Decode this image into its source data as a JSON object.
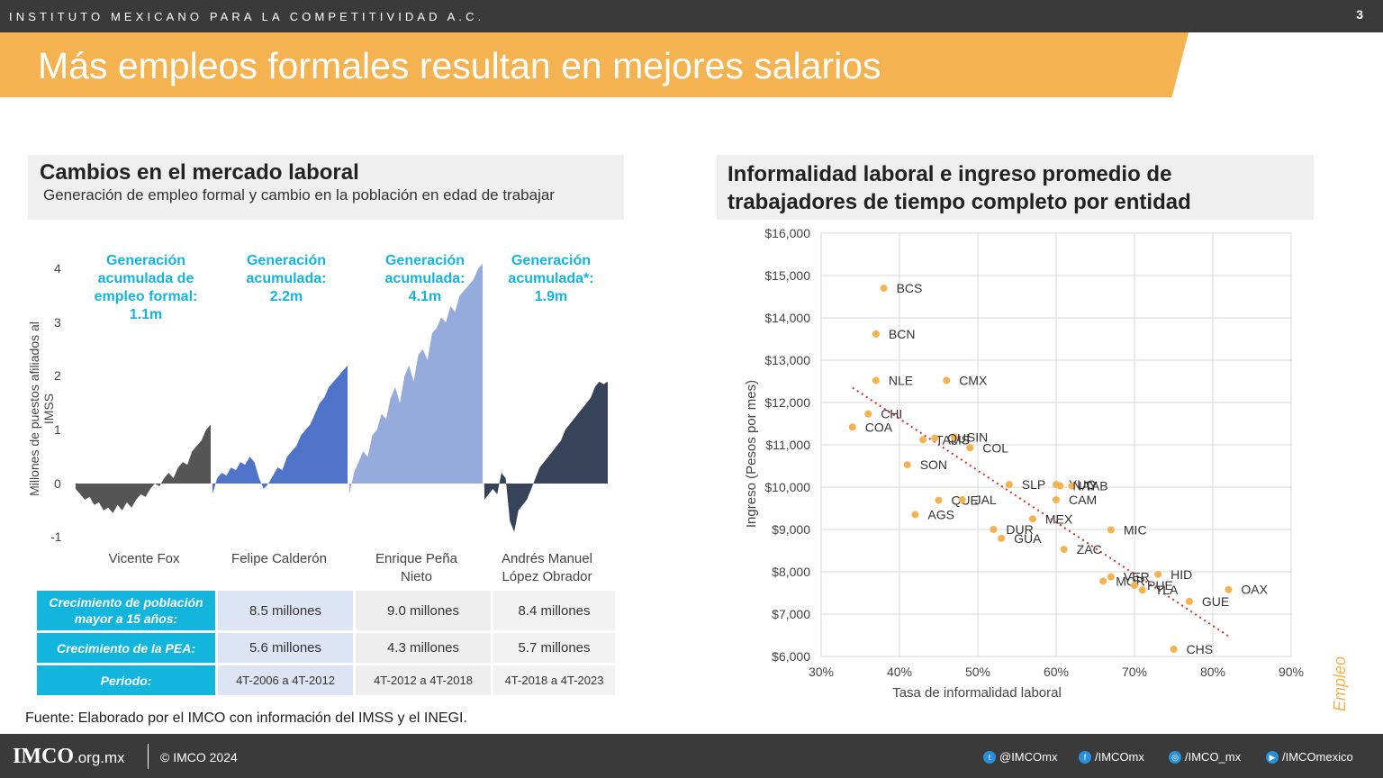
{
  "header": {
    "org": "INSTITUTO MEXICANO PARA LA COMPETITIVIDAD A.C.",
    "page": "3",
    "title": "Más empleos formales resultan en mejores salarios"
  },
  "left": {
    "title": "Cambios en el mercado laboral",
    "subtitle": "Generación de empleo formal y cambio en la población en edad de trabajar",
    "ylabel": "Millones de puestos afiliados al IMSS",
    "yticks": [
      "4",
      "3",
      "2",
      "1",
      "0",
      "-1"
    ],
    "generations": [
      "Generación acumulada de empleo formal: 1.1m",
      "Generación acumulada: 2.2m",
      "Generación acumulada: 4.1m",
      "Generación acumulada*: 1.9m"
    ],
    "presidents": [
      "Vicente Fox",
      "Felipe Calderón",
      "Enrique Peña Nieto",
      "Andrés Manuel López Obrador"
    ],
    "table": [
      {
        "label": "Crecimiento de población mayor a 15 años:",
        "values": [
          "8.5 millones",
          "9.0 millones",
          "8.4 millones"
        ]
      },
      {
        "label": "Crecimiento de la PEA:",
        "values": [
          "5.6 millones",
          "4.3 millones",
          "5.7 millones"
        ]
      },
      {
        "label": "Periodo:",
        "values": [
          "4T-2006 a 4T-2012",
          "4T-2012 a 4T-2018",
          "4T-2018 a 4T-2023"
        ]
      }
    ],
    "source": "Fuente: Elaborado por el IMCO con información del IMSS y el INEGI."
  },
  "chart_data": [
    {
      "type": "area",
      "ylabel": "Millones de puestos afiliados al IMSS",
      "ylim": [
        -1,
        4
      ],
      "colors": [
        "#555555",
        "#4e73c9",
        "#95abdb",
        "#364358"
      ],
      "series": [
        {
          "name": "Vicente Fox",
          "values": [
            -0.1,
            -0.2,
            -0.3,
            -0.25,
            -0.4,
            -0.35,
            -0.5,
            -0.45,
            -0.55,
            -0.4,
            -0.5,
            -0.35,
            -0.45,
            -0.3,
            -0.2,
            -0.25,
            -0.1,
            0.0,
            -0.05,
            0.1,
            0.2,
            0.1,
            0.3,
            0.4,
            0.35,
            0.6,
            0.7,
            0.8,
            1.0,
            1.1
          ]
        },
        {
          "name": "Felipe Calderón",
          "values": [
            -0.2,
            0.1,
            0.2,
            0.15,
            0.3,
            0.25,
            0.4,
            0.35,
            0.5,
            0.4,
            0.1,
            -0.1,
            0.0,
            0.15,
            0.3,
            0.25,
            0.5,
            0.6,
            0.7,
            0.9,
            1.0,
            1.1,
            1.3,
            1.5,
            1.6,
            1.8,
            1.9,
            2.0,
            2.1,
            2.2
          ]
        },
        {
          "name": "Enrique Peña Nieto",
          "values": [
            -0.2,
            0.2,
            0.4,
            0.6,
            0.5,
            0.9,
            1.0,
            1.3,
            1.2,
            1.6,
            1.8,
            1.5,
            2.0,
            2.2,
            1.9,
            2.4,
            2.5,
            2.3,
            2.8,
            2.9,
            3.1,
            3.0,
            3.3,
            3.2,
            3.5,
            3.6,
            3.7,
            3.8,
            4.0,
            4.1
          ]
        },
        {
          "name": "Andrés Manuel López Obrador",
          "values": [
            -0.3,
            -0.2,
            -0.1,
            -0.2,
            0.2,
            0.1,
            -0.7,
            -0.9,
            -0.5,
            -0.4,
            -0.3,
            -0.1,
            0.1,
            0.3,
            0.4,
            0.5,
            0.6,
            0.7,
            0.8,
            1.0,
            1.1,
            1.2,
            1.3,
            1.4,
            1.5,
            1.6,
            1.8,
            1.9,
            1.85,
            1.9
          ]
        }
      ]
    },
    {
      "type": "scatter",
      "title": "Informalidad laboral e ingreso promedio de trabajadores de tiempo completo por entidad",
      "xlabel": "Tasa de informalidad laboral",
      "ylabel": "Ingreso (Pesos por mes)",
      "xlim": [
        30,
        90
      ],
      "ylim": [
        6000,
        16000
      ],
      "xticks": [
        "30%",
        "40%",
        "50%",
        "60%",
        "70%",
        "80%",
        "90%"
      ],
      "yticks": [
        "$16,000",
        "$15,000",
        "$14,000",
        "$13,000",
        "$12,000",
        "$11,000",
        "$10,000",
        "$9,000",
        "$8,000",
        "$7,000",
        "$6,000"
      ],
      "color": "#f4b350",
      "trend": {
        "x": [
          34,
          82
        ],
        "y": [
          12350,
          6480
        ],
        "color": "#d03030"
      },
      "points": [
        {
          "label": "BCS",
          "x": 38.0,
          "y": 14700
        },
        {
          "label": "BCN",
          "x": 37.0,
          "y": 13620
        },
        {
          "label": "NLE",
          "x": 37.0,
          "y": 12520
        },
        {
          "label": "CMX",
          "x": 46.0,
          "y": 12520
        },
        {
          "label": "CHI",
          "x": 36.0,
          "y": 11730
        },
        {
          "label": "COA",
          "x": 34.0,
          "y": 11420
        },
        {
          "label": "TAMS",
          "x": 43.0,
          "y": 11120
        },
        {
          "label": "SIN",
          "x": 47.0,
          "y": 11180
        },
        {
          "label": "QUI",
          "x": 44.5,
          "y": 11160
        },
        {
          "label": "COL",
          "x": 49.0,
          "y": 10930
        },
        {
          "label": "SON",
          "x": 41.0,
          "y": 10530
        },
        {
          "label": "YUC",
          "x": 60.0,
          "y": 10060
        },
        {
          "label": "TAB",
          "x": 62.0,
          "y": 10030
        },
        {
          "label": "QUE",
          "x": 45.0,
          "y": 9690
        },
        {
          "label": "SLP",
          "x": 54.0,
          "y": 10060
        },
        {
          "label": "NAY",
          "x": 60.5,
          "y": 10030
        },
        {
          "label": "CAM",
          "x": 60.0,
          "y": 9700
        },
        {
          "label": "JAL",
          "x": 48.0,
          "y": 9700
        },
        {
          "label": "AGS",
          "x": 42.0,
          "y": 9350
        },
        {
          "label": "MEX",
          "x": 57.0,
          "y": 9250
        },
        {
          "label": "DUR",
          "x": 52.0,
          "y": 9000
        },
        {
          "label": "GUA",
          "x": 53.0,
          "y": 8790
        },
        {
          "label": "MIC",
          "x": 67.0,
          "y": 8990
        },
        {
          "label": "ZAC",
          "x": 61.0,
          "y": 8530
        },
        {
          "label": "VER",
          "x": 67.0,
          "y": 7880
        },
        {
          "label": "HID",
          "x": 73.0,
          "y": 7940
        },
        {
          "label": "MOR",
          "x": 66.0,
          "y": 7780
        },
        {
          "label": "PUE",
          "x": 70.0,
          "y": 7680
        },
        {
          "label": "TLA",
          "x": 71.0,
          "y": 7570
        },
        {
          "label": "OAX",
          "x": 82.0,
          "y": 7580
        },
        {
          "label": "GUE",
          "x": 77.0,
          "y": 7300
        },
        {
          "label": "CHS",
          "x": 75.0,
          "y": 6170
        }
      ]
    }
  ],
  "side_label": "Empleo",
  "footer": {
    "logo": "IMCO",
    "logo_suffix": ".org.mx",
    "copyright": "© IMCO 2024",
    "social": [
      {
        "icon": "twitter-icon",
        "text": "@IMCOmx"
      },
      {
        "icon": "facebook-icon",
        "text": "/IMCOmx"
      },
      {
        "icon": "instagram-icon",
        "text": "/IMCO_mx"
      },
      {
        "icon": "youtube-icon",
        "text": "/IMCOmexico"
      }
    ]
  }
}
